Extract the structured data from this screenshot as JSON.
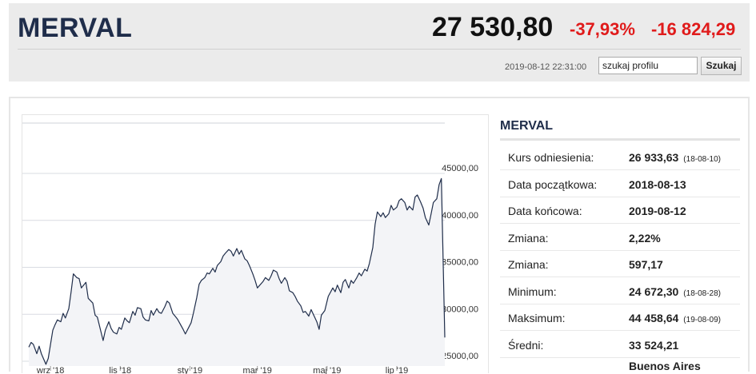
{
  "header": {
    "name": "MERVAL",
    "price": "27 530,80",
    "change_pct": "-37,93%",
    "change_abs": "-16 824,29",
    "timestamp": "2019-08-12 22:31:00",
    "search_value": "szukaj profilu",
    "search_button": "Szukaj",
    "colors": {
      "negative": "#e01b1b",
      "title": "#1f2d4a"
    }
  },
  "info": {
    "title": "MERVAL",
    "rows": [
      {
        "label": "Kurs odniesienia:",
        "value": "26 933,63",
        "date": "(18-08-10)"
      },
      {
        "label": "Data początkowa:",
        "value": "2018-08-13",
        "date": ""
      },
      {
        "label": "Data końcowa:",
        "value": "2019-08-12",
        "date": ""
      },
      {
        "label": "Zmiana:",
        "value": "2,22%",
        "date": ""
      },
      {
        "label": "Zmiana:",
        "value": "597,17",
        "date": ""
      },
      {
        "label": "Minimum:",
        "value": "24 672,30",
        "date": "(18-08-28)"
      },
      {
        "label": "Maksimum:",
        "value": "44 458,64",
        "date": "(19-08-09)"
      },
      {
        "label": "Średni:",
        "value": "33 524,21",
        "date": ""
      }
    ],
    "location": "Buenos Aires"
  },
  "chart_data": {
    "type": "area",
    "x_tick_labels": [
      "wrz '18",
      "lis '18",
      "sty '19",
      "mar '19",
      "maj '19",
      "lip '19"
    ],
    "y_tick_labels": [
      "25000,00",
      "30000,00",
      "35000,00",
      "40000,00",
      "45000,00"
    ],
    "ylim": [
      25000,
      45000
    ],
    "grid": true,
    "line_color": "#1f2d4a",
    "fill_color": "#f3f4f7",
    "x_range": [
      "2018-08-13",
      "2019-08-12"
    ],
    "series": [
      {
        "x": [
          "2018-08-13",
          "2018-08-15",
          "2018-08-17",
          "2018-08-20",
          "2018-08-22",
          "2018-08-24",
          "2018-08-28",
          "2018-08-30",
          "2018-09-03",
          "2018-09-05",
          "2018-09-07",
          "2018-09-10",
          "2018-09-12",
          "2018-09-14",
          "2018-09-17",
          "2018-09-19",
          "2018-09-21",
          "2018-09-24",
          "2018-09-26",
          "2018-09-28",
          "2018-10-02",
          "2018-10-04",
          "2018-10-08",
          "2018-10-10",
          "2018-10-12",
          "2018-10-15",
          "2018-10-17",
          "2018-10-19",
          "2018-10-22",
          "2018-10-24",
          "2018-10-26",
          "2018-10-29",
          "2018-10-31",
          "2018-11-02",
          "2018-11-05",
          "2018-11-07",
          "2018-11-09",
          "2018-11-12",
          "2018-11-14",
          "2018-11-16",
          "2018-11-19",
          "2018-11-21",
          "2018-11-23",
          "2018-11-26",
          "2018-11-28",
          "2018-11-30",
          "2018-12-03",
          "2018-12-05",
          "2018-12-07",
          "2018-12-10",
          "2018-12-12",
          "2018-12-14",
          "2018-12-17",
          "2018-12-19",
          "2018-12-21",
          "2018-12-26",
          "2018-12-28",
          "2019-01-02",
          "2019-01-04",
          "2019-01-07",
          "2019-01-09",
          "2019-01-11",
          "2019-01-14",
          "2019-01-16",
          "2019-01-18",
          "2019-01-21",
          "2019-01-23",
          "2019-01-25",
          "2019-01-28",
          "2019-01-30",
          "2019-02-01",
          "2019-02-04",
          "2019-02-06",
          "2019-02-08",
          "2019-02-11",
          "2019-02-13",
          "2019-02-15",
          "2019-02-18",
          "2019-02-20",
          "2019-02-22",
          "2019-02-25",
          "2019-02-27",
          "2019-03-01",
          "2019-03-06",
          "2019-03-08",
          "2019-03-11",
          "2019-03-13",
          "2019-03-15",
          "2019-03-18",
          "2019-03-20",
          "2019-03-22",
          "2019-03-25",
          "2019-03-27",
          "2019-03-29",
          "2019-04-01",
          "2019-04-03",
          "2019-04-05",
          "2019-04-08",
          "2019-04-10",
          "2019-04-12",
          "2019-04-15",
          "2019-04-17",
          "2019-04-22",
          "2019-04-24",
          "2019-04-26",
          "2019-04-29",
          "2019-05-02",
          "2019-05-06",
          "2019-05-08",
          "2019-05-10",
          "2019-05-13",
          "2019-05-15",
          "2019-05-17",
          "2019-05-20",
          "2019-05-22",
          "2019-05-24",
          "2019-05-27",
          "2019-05-29",
          "2019-05-31",
          "2019-06-03",
          "2019-06-05",
          "2019-06-07",
          "2019-06-10",
          "2019-06-12",
          "2019-06-14",
          "2019-06-17",
          "2019-06-19",
          "2019-06-21",
          "2019-06-24",
          "2019-06-26",
          "2019-06-28",
          "2019-07-01",
          "2019-07-03",
          "2019-07-05",
          "2019-07-08",
          "2019-07-10",
          "2019-07-12",
          "2019-07-15",
          "2019-07-17",
          "2019-07-19",
          "2019-07-22",
          "2019-07-24",
          "2019-07-26",
          "2019-07-29",
          "2019-07-31",
          "2019-08-02",
          "2019-08-05",
          "2019-08-07",
          "2019-08-09",
          "2019-08-12"
        ],
        "y": [
          26500,
          27000,
          26800,
          25800,
          26600,
          25800,
          24672,
          25300,
          28300,
          28900,
          29400,
          29200,
          30100,
          29600,
          30600,
          32400,
          34300,
          33900,
          33800,
          32800,
          33400,
          31700,
          31200,
          29900,
          29700,
          28200,
          27200,
          28300,
          29200,
          28500,
          28100,
          27900,
          28600,
          28400,
          29600,
          29300,
          29100,
          30300,
          29900,
          30700,
          30600,
          29700,
          29400,
          29300,
          30400,
          29900,
          30600,
          30200,
          30100,
          30800,
          31400,
          31200,
          30100,
          29800,
          29500,
          28400,
          27900,
          29100,
          30100,
          31800,
          33200,
          33600,
          33900,
          34400,
          34300,
          34900,
          34500,
          35200,
          35600,
          36200,
          36500,
          36900,
          36700,
          36200,
          37000,
          36400,
          36800,
          35900,
          35700,
          35200,
          34300,
          33600,
          32800,
          33500,
          33900,
          33600,
          34100,
          34700,
          34500,
          33800,
          33300,
          33900,
          33500,
          32500,
          32300,
          31900,
          31400,
          30900,
          30200,
          30300,
          29800,
          30500,
          29200,
          28400,
          29900,
          30400,
          31900,
          32800,
          32400,
          33100,
          32300,
          33400,
          33700,
          32800,
          33600,
          33300,
          33900,
          34400,
          34100,
          34800,
          34600,
          35400,
          37100,
          39600,
          40900,
          40400,
          40800,
          40300,
          40700,
          41600,
          41100,
          41400,
          42100,
          42300,
          41900,
          41100,
          41500,
          41100,
          42500,
          42700,
          41900,
          41300,
          40300,
          39500,
          40700,
          41900,
          42300,
          43800,
          44458,
          27531
        ]
      }
    ]
  }
}
